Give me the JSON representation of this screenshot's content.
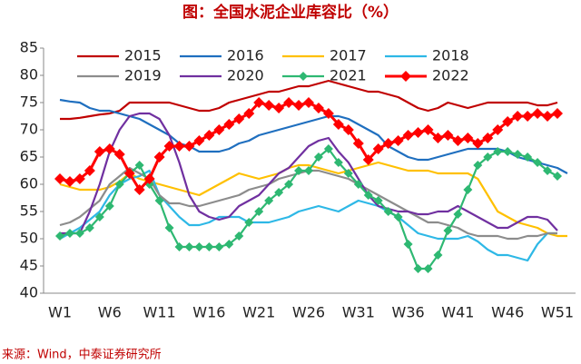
{
  "chart_data": {
    "type": "line",
    "title": "图：全国水泥企业库容比（%）",
    "source": "来源：Wind，中泰证券研究所",
    "categories": [
      "W1",
      null,
      null,
      null,
      null,
      "W6",
      null,
      null,
      null,
      null,
      "W11",
      null,
      null,
      null,
      null,
      "W16",
      null,
      null,
      null,
      null,
      "W21",
      null,
      null,
      null,
      null,
      "W26",
      null,
      null,
      null,
      null,
      "W31",
      null,
      null,
      null,
      null,
      "W36",
      null,
      null,
      null,
      null,
      "W41",
      null,
      null,
      null,
      null,
      "W46",
      null,
      null,
      null,
      null,
      "W51",
      null
    ],
    "ylim": [
      40,
      85
    ],
    "yticks": [
      40,
      45,
      50,
      55,
      60,
      65,
      70,
      75,
      80,
      85
    ],
    "grid": false,
    "series": [
      {
        "name": "2015",
        "color": "#c00000",
        "values": [
          72,
          72,
          72.2,
          72.5,
          72.8,
          73,
          73.5,
          75,
          75,
          75,
          75,
          75,
          74.5,
          74,
          73.5,
          73.5,
          74,
          75,
          75.5,
          76,
          76.5,
          77,
          77,
          77.5,
          78,
          78,
          78.5,
          79,
          78.5,
          78,
          77.5,
          77,
          77,
          76.5,
          76,
          75,
          74,
          73.5,
          74,
          75,
          74.5,
          74,
          74.5,
          75,
          75,
          75,
          75,
          75,
          74.5,
          74.5,
          75,
          null
        ]
      },
      {
        "name": "2016",
        "color": "#1f6fbf",
        "values": [
          75.5,
          75.2,
          75,
          74,
          73.5,
          73.5,
          73,
          72.5,
          72,
          71,
          70,
          69,
          67.5,
          67,
          66,
          66,
          66,
          66.5,
          67.5,
          68,
          69,
          69.5,
          70,
          70.5,
          71,
          71.5,
          72,
          72.5,
          72.5,
          72,
          71,
          70,
          69,
          67,
          66,
          65,
          64.5,
          64.5,
          65,
          65.5,
          66,
          66.5,
          66.5,
          66.5,
          66.5,
          66,
          65,
          64.5,
          64,
          63.5,
          63,
          62
        ]
      },
      {
        "name": "2017",
        "color": "#ffc000",
        "values": [
          60,
          59.5,
          59,
          59,
          59,
          59.5,
          60.5,
          62,
          61,
          60.5,
          60,
          59.5,
          59,
          58.5,
          58,
          59,
          60,
          61,
          62,
          61.5,
          61,
          61.5,
          62,
          63,
          63.5,
          63.5,
          63,
          62.5,
          62,
          62.5,
          63,
          63.5,
          64,
          63.5,
          63,
          62.5,
          62.5,
          62.5,
          62,
          62,
          62,
          62,
          61,
          58,
          55,
          54,
          53,
          52.5,
          52,
          51,
          50.5,
          50.5
        ]
      },
      {
        "name": "2018",
        "color": "#2eb8e6",
        "values": [
          50,
          51,
          52,
          53.5,
          55,
          58,
          60,
          61,
          61.5,
          62.5,
          58,
          56,
          54,
          52.5,
          52.5,
          53,
          54,
          54,
          54,
          53,
          53,
          53,
          53.5,
          54,
          55,
          55.5,
          56,
          55.5,
          55,
          56,
          57,
          56.5,
          56,
          55,
          54,
          52.5,
          51,
          50.5,
          50,
          50,
          50,
          50.5,
          49.5,
          48,
          47,
          47,
          46.5,
          46,
          49,
          51,
          51,
          null
        ]
      },
      {
        "name": "2019",
        "color": "#8c8c8c",
        "values": [
          52.5,
          53,
          54,
          55.5,
          57,
          60,
          61.5,
          63,
          62,
          61,
          58,
          56.5,
          56.5,
          56,
          56,
          56.5,
          57,
          57.5,
          58,
          59,
          59.5,
          60,
          61,
          61.5,
          62,
          62.5,
          62.5,
          62,
          61.5,
          61,
          60,
          59,
          58,
          57,
          56,
          55,
          54,
          53,
          53,
          52.5,
          52,
          51,
          50.5,
          50.5,
          50.5,
          50,
          50,
          50.5,
          50.5,
          51,
          51,
          null
        ]
      },
      {
        "name": "2020",
        "color": "#7030a0",
        "values": [
          51,
          51,
          51,
          55,
          60,
          66,
          70,
          72.5,
          73,
          73,
          72,
          69,
          64,
          58,
          55,
          54,
          53.5,
          54,
          56,
          57,
          58,
          60,
          62,
          63,
          65,
          67,
          68,
          68.5,
          66,
          64,
          61,
          58,
          56,
          55.5,
          55,
          55,
          54.5,
          54.5,
          55,
          55,
          56,
          55,
          54,
          53,
          52,
          52,
          53,
          54,
          54,
          53.5,
          51.5,
          null
        ]
      },
      {
        "name": "2021",
        "color": "#2eb872",
        "marker": "diamond",
        "values": [
          50.5,
          51,
          51,
          52,
          54,
          56,
          60,
          62,
          63.5,
          60,
          57,
          52,
          48.5,
          48.5,
          48.5,
          48.5,
          48.5,
          49,
          50.5,
          53,
          55,
          57,
          58.5,
          60,
          62.5,
          62.5,
          65,
          66.5,
          64,
          62,
          60,
          58,
          57,
          55,
          54,
          49,
          44.5,
          44.5,
          47,
          51.5,
          54.5,
          59,
          63.5,
          65,
          66,
          66,
          65.5,
          65,
          64,
          62.5,
          61.5,
          null
        ]
      },
      {
        "name": "2022",
        "color": "#ff0000",
        "marker": "diamond",
        "values": [
          61,
          60.5,
          61,
          62.5,
          66,
          66.5,
          65.5,
          62,
          59,
          61,
          65,
          67,
          67,
          67,
          68,
          69,
          70,
          71,
          72,
          73,
          75,
          74.5,
          74,
          75,
          74.5,
          75,
          74,
          73,
          71,
          70,
          67.5,
          64.5,
          66.5,
          67.5,
          68,
          69,
          69.5,
          70,
          68.5,
          69,
          68,
          68.5,
          67.5,
          68.5,
          70,
          71.5,
          72.5,
          72.5,
          73,
          72.5,
          73,
          null
        ]
      }
    ]
  }
}
